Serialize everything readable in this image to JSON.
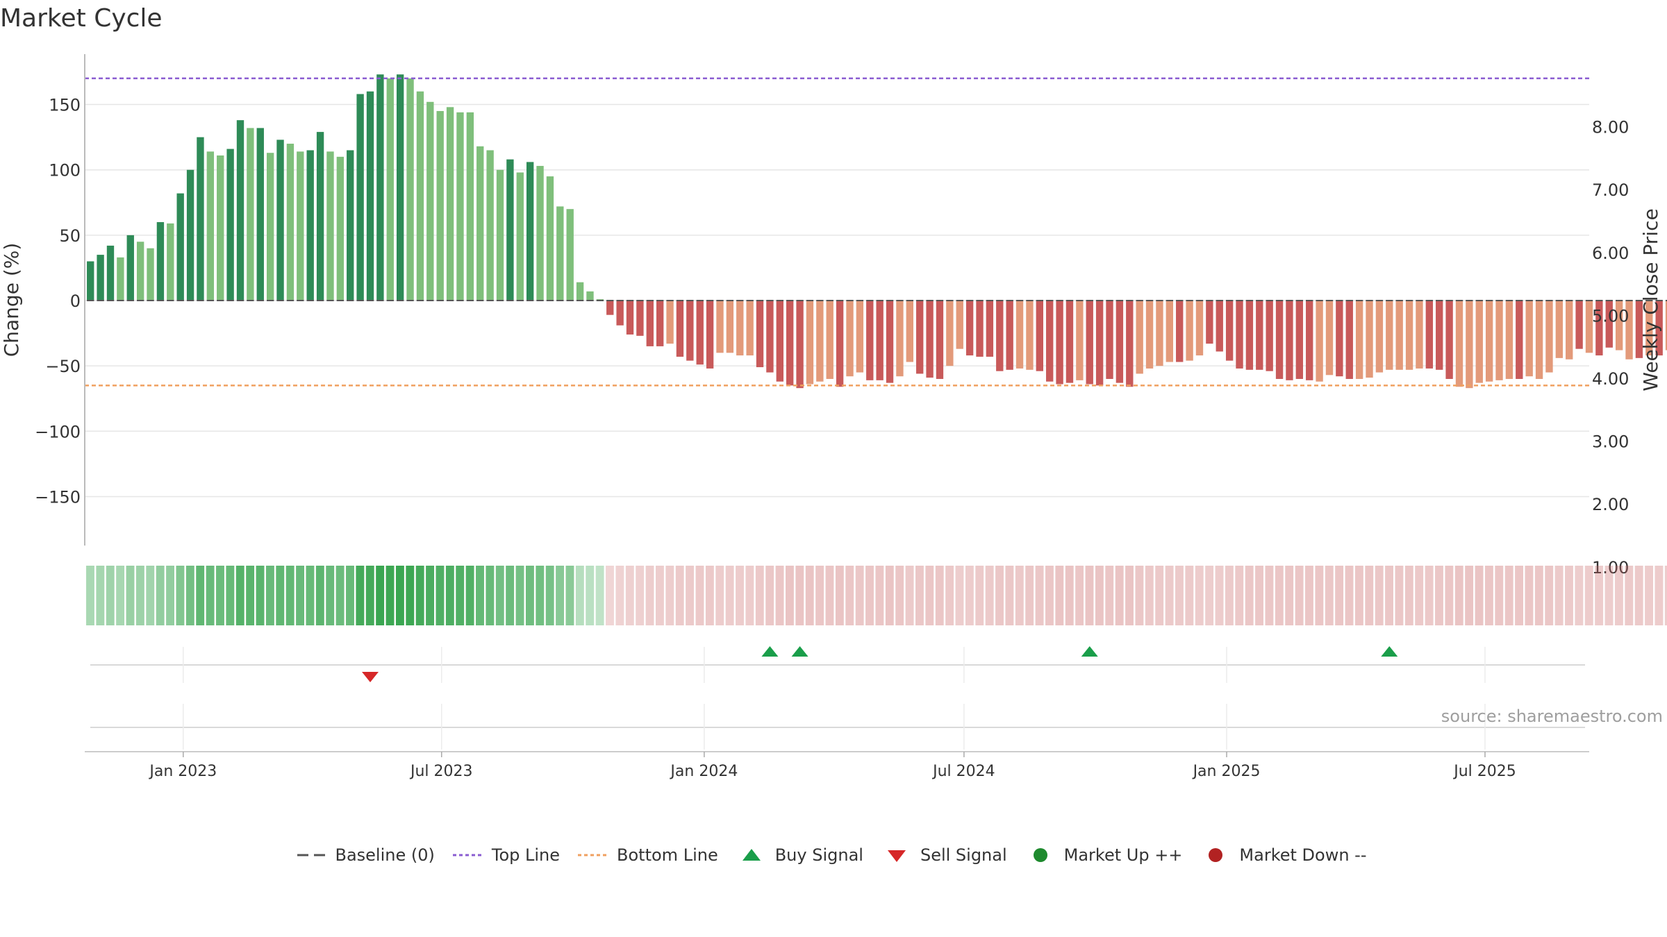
{
  "title": "Market Cycle",
  "source_note": "source: sharemaestro.com",
  "colors": {
    "up_dark": "#2e8b57",
    "up_light": "#7fbf7b",
    "down_dark": "#c85a5a",
    "down_light": "#e39a7a",
    "top_line": "#8a5cd1",
    "bottom_line": "#f0a060",
    "buy": "#1a9e4a",
    "sell": "#d62728",
    "market_up": "#1e8a2e",
    "market_down": "#b22222",
    "baseline": "#555555"
  },
  "legend": [
    {
      "label": "Baseline (0)",
      "icon": "dashed-gray-line"
    },
    {
      "label": "Top Line",
      "icon": "dotted-purple-line"
    },
    {
      "label": "Bottom Line",
      "icon": "dotted-orange-line"
    },
    {
      "label": "Buy Signal",
      "icon": "green-up-triangle"
    },
    {
      "label": "Sell Signal",
      "icon": "red-down-triangle"
    },
    {
      "label": "Market Up ++",
      "icon": "green-dot"
    },
    {
      "label": "Market Down --",
      "icon": "red-dot"
    }
  ],
  "chart_data": {
    "type": "bar",
    "title": "Market Cycle",
    "ylabel": "Change (%)",
    "y2label": "Weekly Close Price",
    "ylim": [
      -188,
      188
    ],
    "y2lim": [
      0.39,
      8.77
    ],
    "yticks": [
      150,
      100,
      50,
      0,
      -50,
      -100,
      -150
    ],
    "ytick_labels": [
      "150",
      "100",
      "50",
      "0",
      "−50",
      "−100",
      "−150"
    ],
    "y2ticks": [
      8,
      7,
      6,
      5,
      4,
      3,
      2,
      1
    ],
    "y2tick_labels": [
      "8.00",
      "7.00",
      "6.00",
      "5.00",
      "4.00",
      "3.00",
      "2.00",
      "1.00"
    ],
    "xlim": [
      "2022-10-24",
      "2025-09-12"
    ],
    "xticks": [
      "2023-01-01",
      "2023-07-01",
      "2024-01-01",
      "2024-07-01",
      "2025-01-01",
      "2025-07-01"
    ],
    "xtick_labels": [
      "Jan 2023",
      "Jul 2023",
      "Jan 2024",
      "Jul 2024",
      "Jan 2025",
      "Jul 2025"
    ],
    "first_bar_date": "2022-10-28",
    "bar_interval_days": 7,
    "top_line": 170,
    "bottom_line": -65,
    "baseline": 0,
    "grid": true,
    "legend_position": "bottom",
    "values": [
      30,
      35,
      42,
      33,
      50,
      45,
      40,
      60,
      59,
      82,
      100,
      125,
      114,
      111,
      116,
      138,
      132,
      132,
      113,
      123,
      120,
      114,
      115,
      129,
      114,
      110,
      115,
      158,
      160,
      173,
      170,
      173,
      170,
      160,
      152,
      145,
      148,
      144,
      144,
      118,
      115,
      100,
      108,
      98,
      106,
      103,
      95,
      72,
      70,
      14,
      7,
      1,
      -11,
      -19,
      -26,
      -27,
      -35,
      -35,
      -33,
      -43,
      -46,
      -49,
      -52,
      -40,
      -40,
      -42,
      -42,
      -51,
      -55,
      -62,
      -65,
      -67,
      -64,
      -62,
      -60,
      -66,
      -58,
      -55,
      -61,
      -61,
      -63,
      -58,
      -47,
      -56,
      -59,
      -60,
      -50,
      -37,
      -42,
      -43,
      -43,
      -54,
      -53,
      -52,
      -53,
      -54,
      -62,
      -64,
      -63,
      -61,
      -64,
      -65,
      -60,
      -63,
      -66,
      -56,
      -52,
      -50,
      -47,
      -47,
      -46,
      -42,
      -33,
      -39,
      -46,
      -52,
      -53,
      -53,
      -54,
      -60,
      -61,
      -60,
      -61,
      -62,
      -57,
      -58,
      -60,
      -60,
      -59,
      -55,
      -53,
      -53,
      -53,
      -52,
      -52,
      -53,
      -60,
      -66,
      -67,
      -63,
      -62,
      -61,
      -60,
      -60,
      -58,
      -60,
      -55,
      -44,
      -45,
      -37,
      -40,
      -42,
      -36,
      -38,
      -45,
      -44,
      -42,
      -42,
      -38,
      -36,
      -40,
      -40
    ],
    "shades": [
      1,
      1,
      1,
      0,
      1,
      0,
      0,
      1,
      0,
      1,
      1,
      1,
      0,
      0,
      1,
      1,
      0,
      1,
      0,
      1,
      0,
      0,
      1,
      1,
      0,
      0,
      1,
      1,
      1,
      1,
      0,
      1,
      0,
      0,
      0,
      0,
      0,
      0,
      0,
      0,
      0,
      0,
      1,
      0,
      1,
      0,
      0,
      0,
      0,
      0,
      0,
      0,
      1,
      1,
      1,
      1,
      1,
      1,
      0,
      1,
      1,
      1,
      1,
      0,
      0,
      0,
      0,
      1,
      1,
      1,
      1,
      1,
      0,
      0,
      0,
      1,
      0,
      0,
      1,
      1,
      1,
      0,
      0,
      1,
      1,
      1,
      0,
      0,
      1,
      1,
      1,
      1,
      1,
      0,
      0,
      1,
      1,
      1,
      1,
      0,
      1,
      1,
      1,
      1,
      1,
      0,
      0,
      0,
      0,
      1,
      0,
      0,
      1,
      1,
      1,
      1,
      1,
      1,
      1,
      1,
      1,
      1,
      1,
      0,
      0,
      1,
      1,
      0,
      0,
      0,
      0,
      0,
      0,
      0,
      1,
      1,
      1,
      0,
      0,
      0,
      0,
      0,
      0,
      1,
      0,
      0,
      0,
      0,
      0,
      1,
      0,
      1,
      1,
      0,
      0,
      1,
      0,
      1,
      0,
      0,
      1
    ],
    "buy_signals": [
      "2024-02-16",
      "2024-03-08",
      "2024-09-27",
      "2025-04-25"
    ],
    "sell_signals": [
      "2023-05-12"
    ],
    "market_up": [],
    "market_down": []
  }
}
